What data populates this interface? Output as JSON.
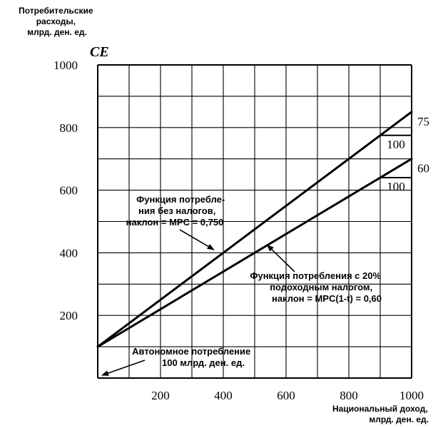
{
  "chart_data": {
    "type": "line",
    "ylabel_lines": [
      "Потребительские",
      "расходы,",
      "млрд. ден. ед."
    ],
    "ysymbol": "CE",
    "xlabel_lines": [
      "Национальный доход,",
      "млрд. ден. ед."
    ],
    "xlim": [
      0,
      1000
    ],
    "ylim": [
      0,
      1000
    ],
    "grid": true,
    "x_ticks": [
      200,
      400,
      600,
      800,
      1000
    ],
    "y_ticks": [
      200,
      400,
      600,
      800,
      1000
    ],
    "series": [
      {
        "x": [
          0,
          1000
        ],
        "y": [
          100,
          850
        ]
      },
      {
        "x": [
          0,
          1000
        ],
        "y": [
          100,
          700
        ]
      }
    ],
    "slope_triangles": [
      {
        "x0": 900,
        "x1": 1000,
        "y0": 775,
        "y1": 850,
        "run_label": "100",
        "rise_label": "75"
      },
      {
        "x0": 900,
        "x1": 1000,
        "y0": 640,
        "y1": 700,
        "run_label": "100",
        "rise_label": "60"
      }
    ],
    "annotations": [
      {
        "id": "no-tax",
        "lines": [
          "Функция потребле-",
          "ния без налогов,",
          "наклон = MPC = 0,750"
        ],
        "arrow_to": [
          370,
          410
        ]
      },
      {
        "id": "with-tax",
        "lines": [
          "Функция потребления с 20%",
          "подоходным налогом,",
          "наклон = MPC(1-t) = 0,60"
        ],
        "arrow_to": [
          540,
          425
        ]
      },
      {
        "id": "autonomous",
        "lines": [
          "Автономное потребление",
          "100 млрд. ден. ед."
        ],
        "arrow_to": [
          0,
          100
        ]
      }
    ]
  }
}
